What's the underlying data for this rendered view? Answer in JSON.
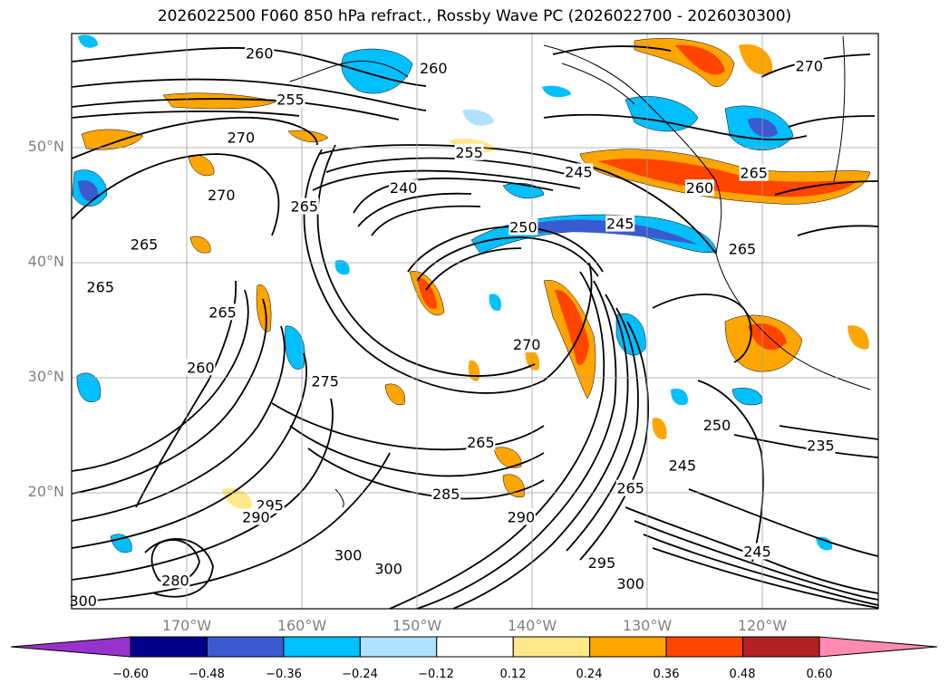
{
  "title": "2026022500 F060 850 hPa refract., Rossby Wave PC (2026022700 - 2026030300)",
  "axes": {
    "lat_labels": [
      "50°N",
      "40°N",
      "30°N",
      "20°N"
    ],
    "lon_labels": [
      "170°W",
      "160°W",
      "150°W",
      "140°W",
      "130°W",
      "120°W"
    ]
  },
  "colorbar": {
    "ticks": [
      "−0.60",
      "−0.48",
      "−0.36",
      "−0.24",
      "−0.12",
      "0.12",
      "0.24",
      "0.36",
      "0.48",
      "0.60"
    ],
    "colors": [
      "#9932cc",
      "#00008b",
      "#3a5bd0",
      "#00bfff",
      "#b0e2ff",
      "#ffffff",
      "#ffe88a",
      "#ffa500",
      "#ff4500",
      "#b22222",
      "#ff8cb0"
    ]
  },
  "contour_labels": [
    {
      "text": "260",
      "lon": -163.7,
      "lat": 58.3
    },
    {
      "text": "260",
      "lon": -148.6,
      "lat": 57.0
    },
    {
      "text": "270",
      "lon": -116.0,
      "lat": 57.2
    },
    {
      "text": "255",
      "lon": -161.0,
      "lat": 54.3
    },
    {
      "text": "270",
      "lon": -165.3,
      "lat": 51.0
    },
    {
      "text": "255",
      "lon": -145.5,
      "lat": 49.7
    },
    {
      "text": "245",
      "lon": -136.0,
      "lat": 48.0
    },
    {
      "text": "265",
      "lon": -120.8,
      "lat": 47.9
    },
    {
      "text": "260",
      "lon": -125.5,
      "lat": 46.6
    },
    {
      "text": "240",
      "lon": -151.2,
      "lat": 46.6
    },
    {
      "text": "270",
      "lon": -167.0,
      "lat": 46.0
    },
    {
      "text": "265",
      "lon": -159.8,
      "lat": 45.0
    },
    {
      "text": "250",
      "lon": -140.8,
      "lat": 43.2
    },
    {
      "text": "245",
      "lon": -132.4,
      "lat": 43.5
    },
    {
      "text": "265",
      "lon": -121.8,
      "lat": 41.3
    },
    {
      "text": "265",
      "lon": -173.7,
      "lat": 41.7
    },
    {
      "text": "265",
      "lon": -177.5,
      "lat": 38.0
    },
    {
      "text": "265",
      "lon": -166.9,
      "lat": 35.8
    },
    {
      "text": "270",
      "lon": -140.5,
      "lat": 33.0
    },
    {
      "text": "260",
      "lon": -168.8,
      "lat": 31.0
    },
    {
      "text": "275",
      "lon": -158.0,
      "lat": 29.8
    },
    {
      "text": "250",
      "lon": -124.0,
      "lat": 26.0
    },
    {
      "text": "235",
      "lon": -115.0,
      "lat": 24.2
    },
    {
      "text": "265",
      "lon": -144.5,
      "lat": 24.5
    },
    {
      "text": "245",
      "lon": -127.0,
      "lat": 22.5
    },
    {
      "text": "265",
      "lon": -131.5,
      "lat": 20.5
    },
    {
      "text": "285",
      "lon": -147.5,
      "lat": 20.0
    },
    {
      "text": "290",
      "lon": -141.0,
      "lat": 18.0
    },
    {
      "text": "295",
      "lon": -162.8,
      "lat": 19.0
    },
    {
      "text": "290",
      "lon": -164.0,
      "lat": 18.0
    },
    {
      "text": "300",
      "lon": -156.0,
      "lat": 14.7
    },
    {
      "text": "300",
      "lon": -152.5,
      "lat": 13.5
    },
    {
      "text": "280",
      "lon": -171.0,
      "lat": 12.5
    },
    {
      "text": "300",
      "lon": -179.0,
      "lat": 10.7
    },
    {
      "text": "300",
      "lon": -131.5,
      "lat": 12.2
    },
    {
      "text": "295",
      "lon": -134.0,
      "lat": 14.0
    },
    {
      "text": "245",
      "lon": -120.5,
      "lat": 15.0
    }
  ]
}
